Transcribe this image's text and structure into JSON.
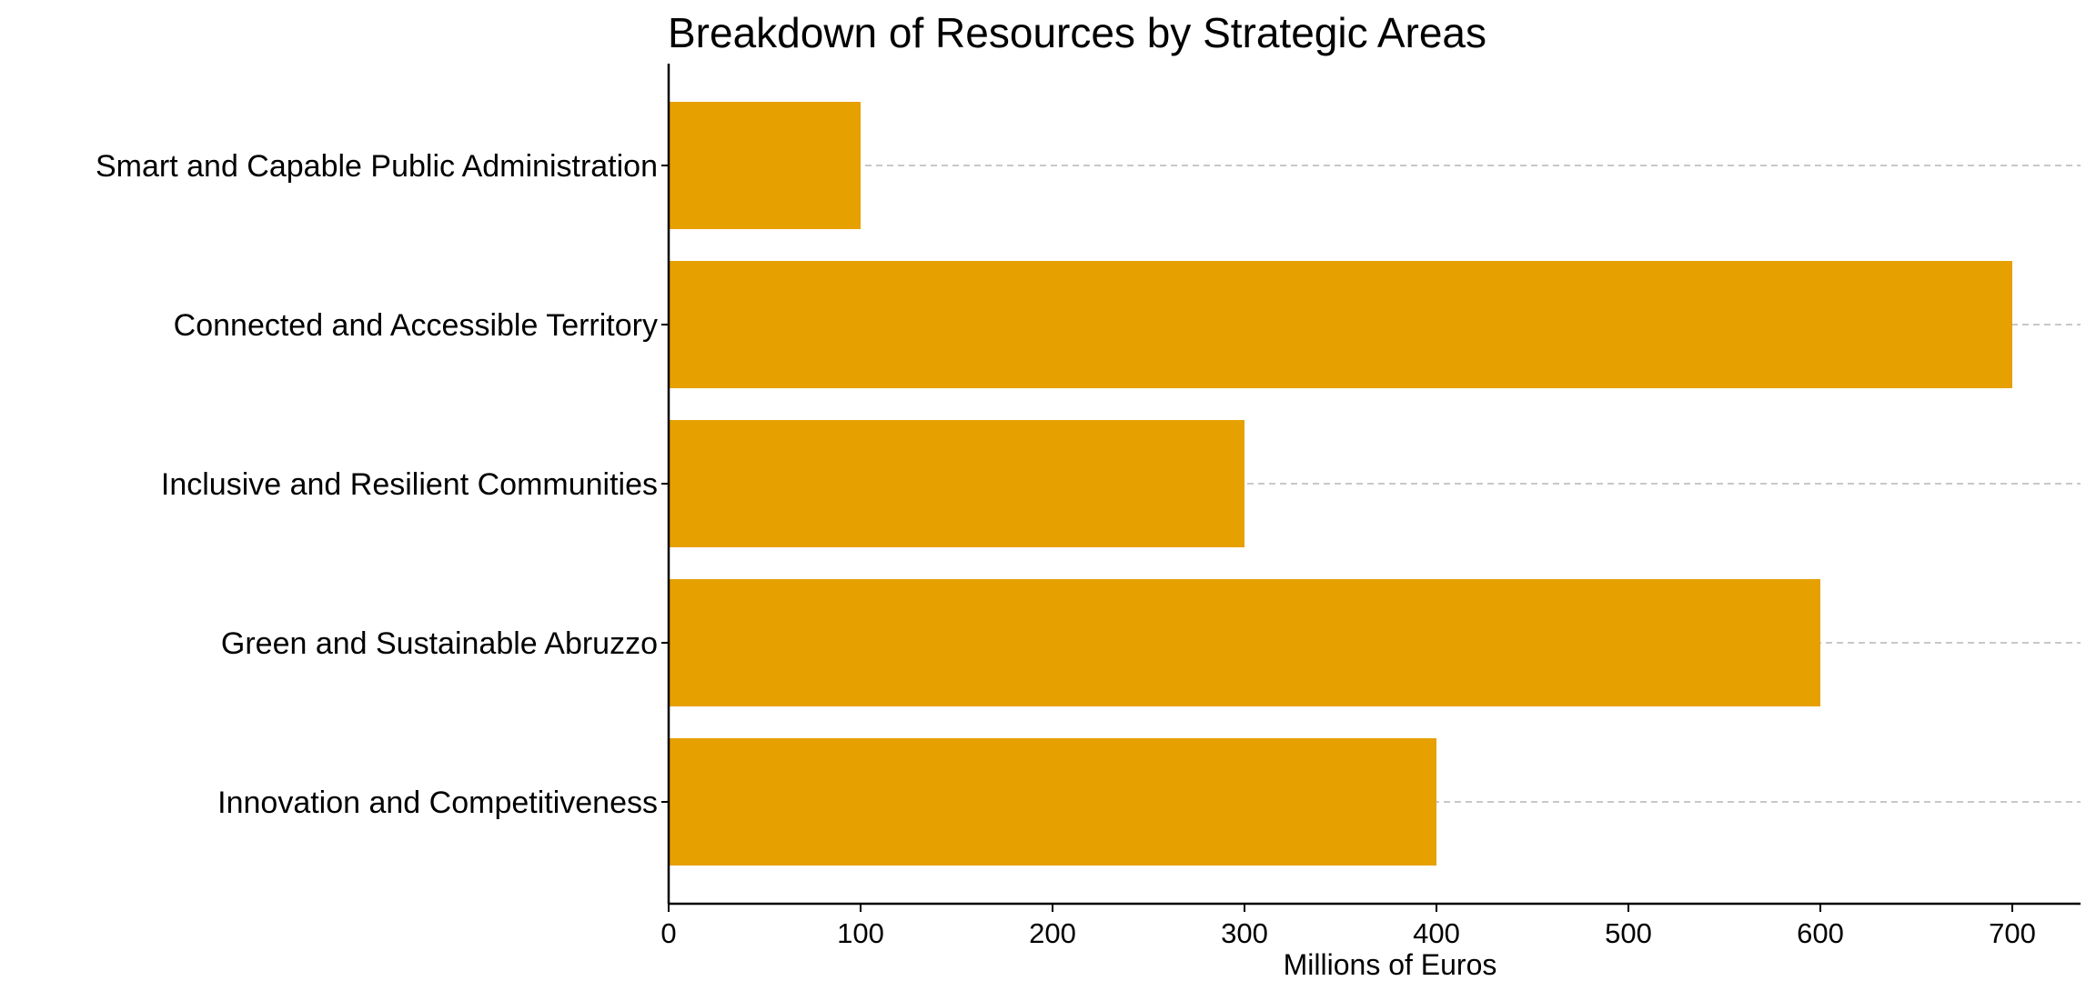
{
  "chart_data": {
    "type": "bar",
    "orientation": "horizontal",
    "title": "Breakdown of Resources by Strategic Areas",
    "xlabel": "Millions of Euros",
    "ylabel": "",
    "categories": [
      "Innovation and Competitiveness",
      "Green and Sustainable Abruzzo",
      "Inclusive and Resilient Communities",
      "Connected and Accessible Territory",
      "Smart and Capable Public Administration"
    ],
    "values": [
      400,
      600,
      300,
      700,
      100
    ],
    "xlim": [
      0,
      735
    ],
    "xticks": [
      0,
      100,
      200,
      300,
      400,
      500,
      600,
      700
    ],
    "grid": "horizontal dashed",
    "legend": "none",
    "colors": {
      "bar": "#e6a000",
      "grid": "#c8c8c8",
      "axis": "#000000"
    }
  }
}
